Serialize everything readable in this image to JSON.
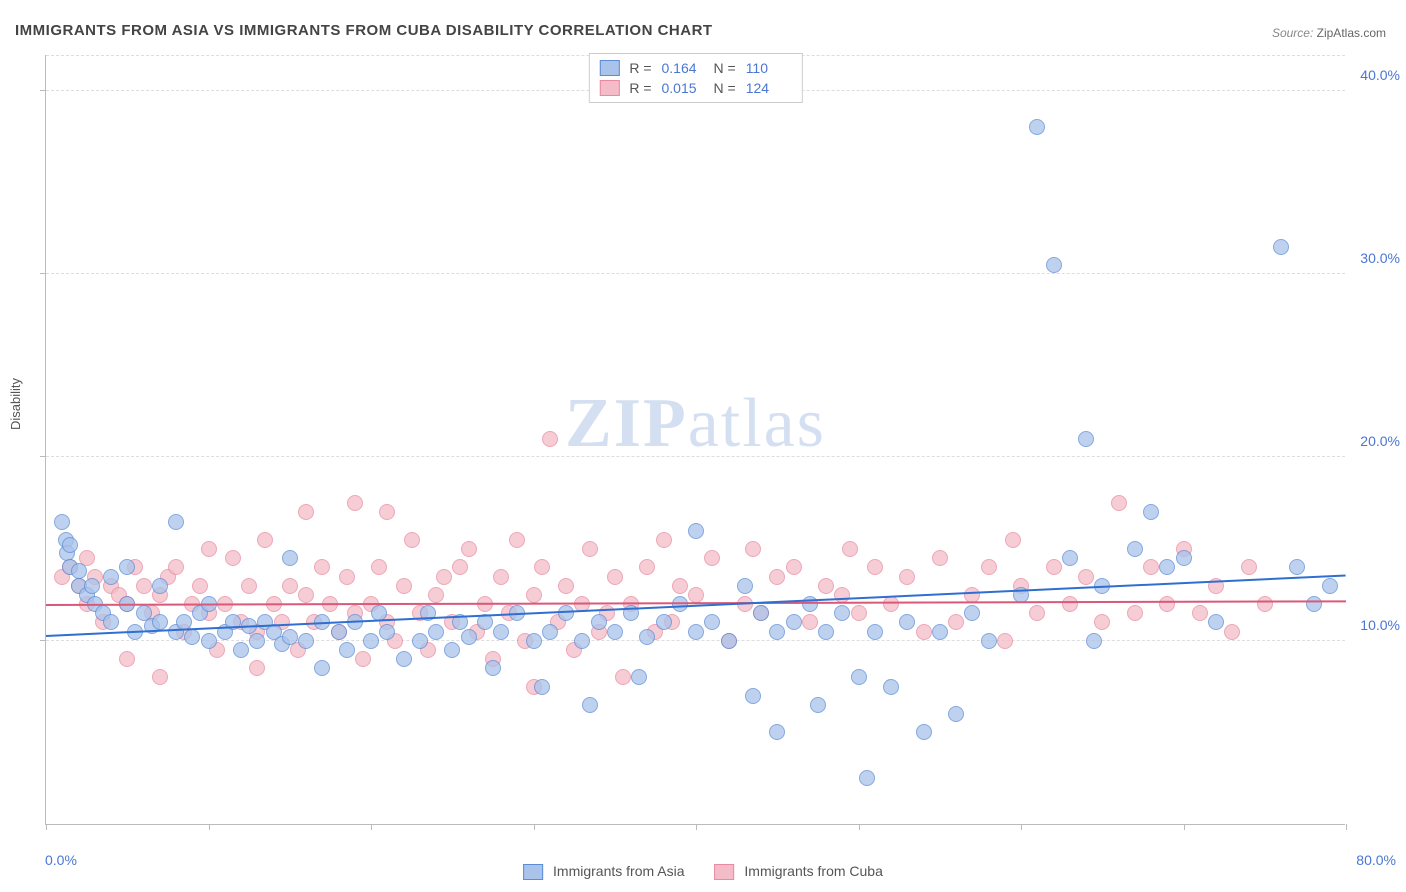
{
  "title": "IMMIGRANTS FROM ASIA VS IMMIGRANTS FROM CUBA DISABILITY CORRELATION CHART",
  "source_label": "Source:",
  "source_value": "ZipAtlas.com",
  "ylabel": "Disability",
  "watermark": "ZIPatlas",
  "series": {
    "asia": {
      "label": "Immigrants from Asia",
      "R": "0.164",
      "N": "110",
      "color_fill": "#a9c3ea",
      "color_stroke": "#5b8cd6",
      "trend_color": "#2f6fd0",
      "trend_y_start": 10.2,
      "trend_y_end": 13.5
    },
    "cuba": {
      "label": "Immigrants from Cuba",
      "R": "0.015",
      "N": "124",
      "color_fill": "#f4bcc8",
      "color_stroke": "#e88aa0",
      "trend_color": "#d9597a",
      "trend_y_start": 11.9,
      "trend_y_end": 12.1
    }
  },
  "axes": {
    "x_min": 0,
    "x_max": 80,
    "x_tick_step": 10,
    "y_min": 0,
    "y_max": 42,
    "y_ticks": [
      10,
      20,
      30,
      40
    ],
    "x_label_min": "0.0%",
    "x_label_max": "80.0%",
    "y_tick_labels": {
      "10": "10.0%",
      "20": "20.0%",
      "30": "30.0%",
      "40": "40.0%"
    }
  },
  "point_radius": 7,
  "points_asia": [
    [
      1,
      16.5
    ],
    [
      1.2,
      15.5
    ],
    [
      1.3,
      14.8
    ],
    [
      1.5,
      14
    ],
    [
      1.5,
      15.2
    ],
    [
      2,
      13
    ],
    [
      2,
      13.8
    ],
    [
      2.5,
      12.5
    ],
    [
      2.8,
      13
    ],
    [
      3,
      12
    ],
    [
      3.5,
      11.5
    ],
    [
      4,
      13.5
    ],
    [
      4,
      11
    ],
    [
      5,
      12
    ],
    [
      5,
      14
    ],
    [
      5.5,
      10.5
    ],
    [
      6,
      11.5
    ],
    [
      6.5,
      10.8
    ],
    [
      7,
      11
    ],
    [
      7,
      13
    ],
    [
      8,
      10.5
    ],
    [
      8,
      16.5
    ],
    [
      8.5,
      11
    ],
    [
      9,
      10.2
    ],
    [
      9.5,
      11.5
    ],
    [
      10,
      10
    ],
    [
      10,
      12
    ],
    [
      11,
      10.5
    ],
    [
      11.5,
      11
    ],
    [
      12,
      9.5
    ],
    [
      12.5,
      10.8
    ],
    [
      13,
      10
    ],
    [
      13.5,
      11
    ],
    [
      14,
      10.5
    ],
    [
      14.5,
      9.8
    ],
    [
      15,
      10.2
    ],
    [
      15,
      14.5
    ],
    [
      16,
      10
    ],
    [
      17,
      11
    ],
    [
      17,
      8.5
    ],
    [
      18,
      10.5
    ],
    [
      18.5,
      9.5
    ],
    [
      19,
      11
    ],
    [
      20,
      10
    ],
    [
      20.5,
      11.5
    ],
    [
      21,
      10.5
    ],
    [
      22,
      9
    ],
    [
      23,
      10
    ],
    [
      23.5,
      11.5
    ],
    [
      24,
      10.5
    ],
    [
      25,
      9.5
    ],
    [
      25.5,
      11
    ],
    [
      26,
      10.2
    ],
    [
      27,
      11
    ],
    [
      27.5,
      8.5
    ],
    [
      28,
      10.5
    ],
    [
      29,
      11.5
    ],
    [
      30,
      10
    ],
    [
      30.5,
      7.5
    ],
    [
      31,
      10.5
    ],
    [
      32,
      11.5
    ],
    [
      33,
      10
    ],
    [
      33.5,
      6.5
    ],
    [
      34,
      11
    ],
    [
      35,
      10.5
    ],
    [
      36,
      11.5
    ],
    [
      36.5,
      8
    ],
    [
      37,
      10.2
    ],
    [
      38,
      11
    ],
    [
      39,
      12
    ],
    [
      40,
      10.5
    ],
    [
      40,
      16
    ],
    [
      41,
      11
    ],
    [
      42,
      10
    ],
    [
      43,
      13
    ],
    [
      43.5,
      7
    ],
    [
      44,
      11.5
    ],
    [
      45,
      10.5
    ],
    [
      45,
      5
    ],
    [
      46,
      11
    ],
    [
      47,
      12
    ],
    [
      47.5,
      6.5
    ],
    [
      48,
      10.5
    ],
    [
      49,
      11.5
    ],
    [
      50,
      8
    ],
    [
      50.5,
      2.5
    ],
    [
      51,
      10.5
    ],
    [
      52,
      7.5
    ],
    [
      53,
      11
    ],
    [
      54,
      5
    ],
    [
      55,
      10.5
    ],
    [
      56,
      6
    ],
    [
      57,
      11.5
    ],
    [
      58,
      10
    ],
    [
      60,
      12.5
    ],
    [
      61,
      38
    ],
    [
      62,
      30.5
    ],
    [
      63,
      14.5
    ],
    [
      64,
      21
    ],
    [
      64.5,
      10
    ],
    [
      65,
      13
    ],
    [
      67,
      15
    ],
    [
      68,
      17
    ],
    [
      69,
      14
    ],
    [
      70,
      14.5
    ],
    [
      72,
      11
    ],
    [
      76,
      31.5
    ],
    [
      77,
      14
    ],
    [
      78,
      12
    ],
    [
      79,
      13
    ]
  ],
  "points_cuba": [
    [
      1,
      13.5
    ],
    [
      1.5,
      14
    ],
    [
      2,
      13
    ],
    [
      2.5,
      14.5
    ],
    [
      2.5,
      12
    ],
    [
      3,
      13.5
    ],
    [
      3.5,
      11
    ],
    [
      4,
      13
    ],
    [
      4.5,
      12.5
    ],
    [
      5,
      12
    ],
    [
      5,
      9
    ],
    [
      5.5,
      14
    ],
    [
      6,
      13
    ],
    [
      6.5,
      11.5
    ],
    [
      7,
      12.5
    ],
    [
      7,
      8
    ],
    [
      7.5,
      13.5
    ],
    [
      8,
      14
    ],
    [
      8.5,
      10.5
    ],
    [
      9,
      12
    ],
    [
      9.5,
      13
    ],
    [
      10,
      11.5
    ],
    [
      10,
      15
    ],
    [
      10.5,
      9.5
    ],
    [
      11,
      12
    ],
    [
      11.5,
      14.5
    ],
    [
      12,
      11
    ],
    [
      12.5,
      13
    ],
    [
      13,
      10.5
    ],
    [
      13,
      8.5
    ],
    [
      13.5,
      15.5
    ],
    [
      14,
      12
    ],
    [
      14.5,
      11
    ],
    [
      15,
      13
    ],
    [
      15.5,
      9.5
    ],
    [
      16,
      12.5
    ],
    [
      16,
      17
    ],
    [
      16.5,
      11
    ],
    [
      17,
      14
    ],
    [
      17.5,
      12
    ],
    [
      18,
      10.5
    ],
    [
      18.5,
      13.5
    ],
    [
      19,
      11.5
    ],
    [
      19,
      17.5
    ],
    [
      19.5,
      9
    ],
    [
      20,
      12
    ],
    [
      20.5,
      14
    ],
    [
      21,
      11
    ],
    [
      21,
      17
    ],
    [
      21.5,
      10
    ],
    [
      22,
      13
    ],
    [
      22.5,
      15.5
    ],
    [
      23,
      11.5
    ],
    [
      23.5,
      9.5
    ],
    [
      24,
      12.5
    ],
    [
      24.5,
      13.5
    ],
    [
      25,
      11
    ],
    [
      25.5,
      14
    ],
    [
      26,
      15
    ],
    [
      26.5,
      10.5
    ],
    [
      27,
      12
    ],
    [
      27.5,
      9
    ],
    [
      28,
      13.5
    ],
    [
      28.5,
      11.5
    ],
    [
      29,
      15.5
    ],
    [
      29.5,
      10
    ],
    [
      30,
      12.5
    ],
    [
      30,
      7.5
    ],
    [
      30.5,
      14
    ],
    [
      31,
      21
    ],
    [
      31.5,
      11
    ],
    [
      32,
      13
    ],
    [
      32.5,
      9.5
    ],
    [
      33,
      12
    ],
    [
      33.5,
      15
    ],
    [
      34,
      10.5
    ],
    [
      34.5,
      11.5
    ],
    [
      35,
      13.5
    ],
    [
      35.5,
      8
    ],
    [
      36,
      12
    ],
    [
      37,
      14
    ],
    [
      37.5,
      10.5
    ],
    [
      38,
      15.5
    ],
    [
      38.5,
      11
    ],
    [
      39,
      13
    ],
    [
      40,
      12.5
    ],
    [
      41,
      14.5
    ],
    [
      42,
      10
    ],
    [
      43,
      12
    ],
    [
      43.5,
      15
    ],
    [
      44,
      11.5
    ],
    [
      45,
      13.5
    ],
    [
      46,
      14
    ],
    [
      47,
      11
    ],
    [
      48,
      13
    ],
    [
      49,
      12.5
    ],
    [
      49.5,
      15
    ],
    [
      50,
      11.5
    ],
    [
      51,
      14
    ],
    [
      52,
      12
    ],
    [
      53,
      13.5
    ],
    [
      54,
      10.5
    ],
    [
      55,
      14.5
    ],
    [
      56,
      11
    ],
    [
      57,
      12.5
    ],
    [
      58,
      14
    ],
    [
      59,
      10
    ],
    [
      59.5,
      15.5
    ],
    [
      60,
      13
    ],
    [
      61,
      11.5
    ],
    [
      62,
      14
    ],
    [
      63,
      12
    ],
    [
      64,
      13.5
    ],
    [
      65,
      11
    ],
    [
      66,
      17.5
    ],
    [
      67,
      11.5
    ],
    [
      68,
      14
    ],
    [
      69,
      12
    ],
    [
      70,
      15
    ],
    [
      71,
      11.5
    ],
    [
      72,
      13
    ],
    [
      73,
      10.5
    ],
    [
      74,
      14
    ],
    [
      75,
      12
    ]
  ]
}
